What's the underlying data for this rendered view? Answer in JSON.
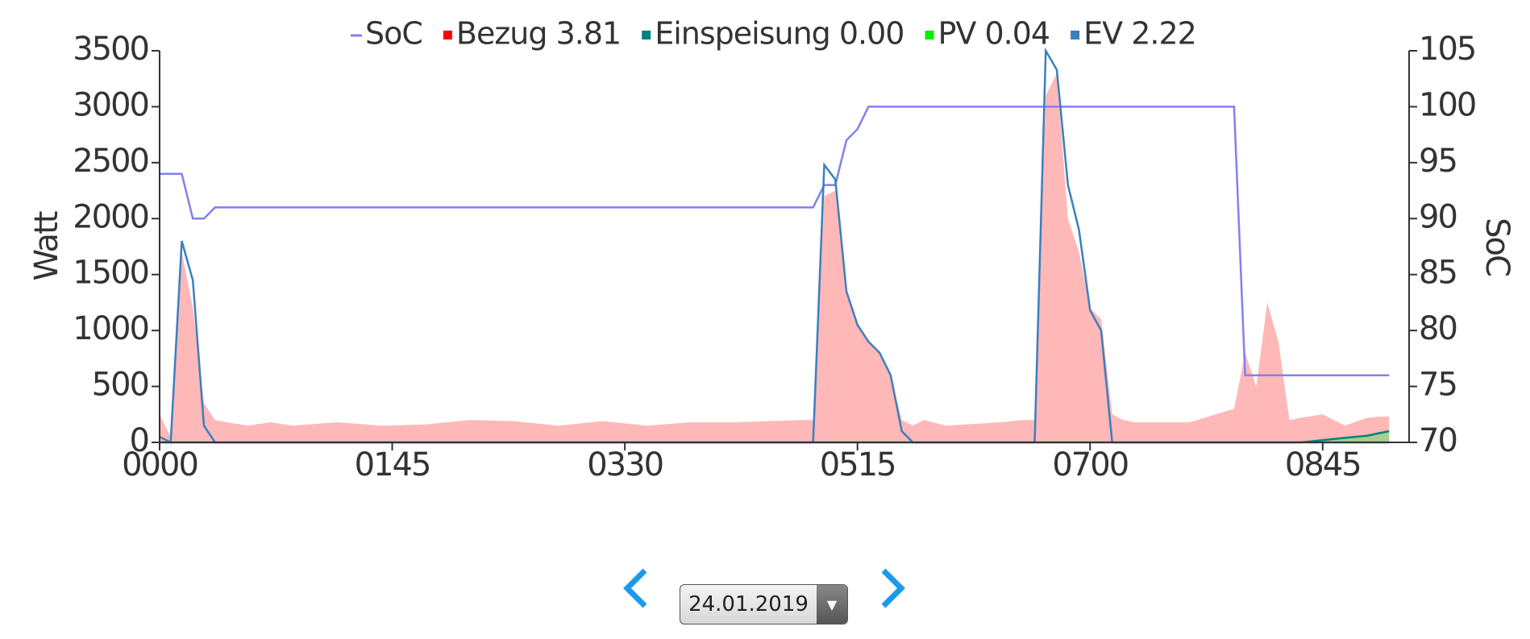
{
  "chart_data": {
    "type": "line",
    "ylabel": "Watt",
    "y2label": "SoC",
    "x": [
      0,
      5,
      10,
      15,
      20,
      25,
      30,
      40,
      50,
      60,
      80,
      100,
      120,
      140,
      160,
      180,
      200,
      220,
      240,
      260,
      290,
      295,
      300,
      305,
      310,
      315,
      320,
      325,
      330,
      335,
      340,
      345,
      355,
      380,
      390,
      395,
      400,
      405,
      410,
      415,
      420,
      425,
      430,
      435,
      440,
      465,
      485,
      490,
      495,
      500,
      505,
      510,
      515,
      525,
      535,
      545,
      550,
      555
    ],
    "xlim": [
      0,
      564
    ],
    "xticks": [
      {
        "value": 0,
        "label": "0000"
      },
      {
        "value": 105,
        "label": "0145"
      },
      {
        "value": 210,
        "label": "0330"
      },
      {
        "value": 315,
        "label": "0515"
      },
      {
        "value": 420,
        "label": "0700"
      },
      {
        "value": 525,
        "label": "0845"
      }
    ],
    "ylim": [
      0,
      3500
    ],
    "yticks": [
      0,
      500,
      1000,
      1500,
      2000,
      2500,
      3000,
      3500
    ],
    "y2lim": [
      70,
      105
    ],
    "y2ticks": [
      70,
      75,
      80,
      85,
      90,
      95,
      100,
      105
    ],
    "series": [
      {
        "name": "SoC",
        "color": "#8080f0",
        "style": "line",
        "axis": "y2",
        "values": [
          94,
          94,
          94,
          90,
          90,
          91,
          91,
          91,
          91,
          91,
          91,
          91,
          91,
          91,
          91,
          91,
          91,
          91,
          91,
          91,
          91,
          91,
          93,
          93,
          97,
          98,
          100,
          100,
          100,
          100,
          100,
          100,
          100,
          100,
          100,
          100,
          100,
          100,
          100,
          100,
          100,
          100,
          100,
          100,
          100,
          100,
          100,
          76,
          76,
          76,
          76,
          76,
          76,
          76,
          76,
          76,
          76,
          76
        ]
      },
      {
        "name": "Bezug 3.81",
        "color": "#ff0000",
        "fill": "#ffb8b8",
        "style": "area",
        "values": [
          250,
          50,
          1700,
          1200,
          350,
          200,
          180,
          150,
          180,
          150,
          180,
          150,
          160,
          200,
          190,
          150,
          190,
          150,
          180,
          180,
          200,
          200,
          2200,
          2250,
          1350,
          1050,
          900,
          800,
          600,
          200,
          150,
          200,
          150,
          180,
          200,
          200,
          3100,
          3300,
          2000,
          1700,
          1200,
          1100,
          250,
          200,
          180,
          180,
          300,
          800,
          500,
          1250,
          900,
          200,
          220,
          250,
          150,
          220,
          230,
          230
        ]
      },
      {
        "name": "Einspeisung 0.00",
        "color": "#008080",
        "style": "line",
        "values": [
          0,
          0,
          0,
          0,
          0,
          0,
          0,
          0,
          0,
          0,
          0,
          0,
          0,
          0,
          0,
          0,
          0,
          0,
          0,
          0,
          0,
          0,
          0,
          0,
          0,
          0,
          0,
          0,
          0,
          0,
          0,
          0,
          0,
          0,
          0,
          0,
          0,
          0,
          0,
          0,
          0,
          0,
          0,
          0,
          0,
          0,
          0,
          0,
          0,
          0,
          0,
          0,
          0,
          20,
          40,
          60,
          80,
          100
        ]
      },
      {
        "name": "PV 0.04",
        "color": "#00ee00",
        "fill": "#a8cf8a",
        "style": "area",
        "values": [
          0,
          0,
          0,
          0,
          0,
          0,
          0,
          0,
          0,
          0,
          0,
          0,
          0,
          0,
          0,
          0,
          0,
          0,
          0,
          0,
          0,
          0,
          0,
          0,
          0,
          0,
          0,
          0,
          0,
          0,
          0,
          0,
          0,
          0,
          0,
          0,
          0,
          0,
          0,
          0,
          0,
          0,
          0,
          0,
          0,
          0,
          0,
          0,
          0,
          0,
          0,
          0,
          0,
          20,
          40,
          60,
          80,
          100
        ]
      },
      {
        "name": "EV 2.22",
        "color": "#3a7fc0",
        "style": "line",
        "values": [
          50,
          0,
          1800,
          1450,
          150,
          0,
          0,
          0,
          0,
          0,
          0,
          0,
          0,
          0,
          0,
          0,
          0,
          0,
          0,
          0,
          0,
          0,
          2480,
          2350,
          1350,
          1050,
          900,
          800,
          600,
          100,
          0,
          0,
          0,
          0,
          0,
          0,
          3500,
          3330,
          2300,
          1900,
          1180,
          1000,
          0,
          0,
          0,
          0,
          0,
          0,
          0,
          0,
          0,
          0,
          0,
          0,
          0,
          0,
          0,
          0
        ]
      }
    ]
  },
  "date_selector": {
    "date": "24.01.2019"
  }
}
